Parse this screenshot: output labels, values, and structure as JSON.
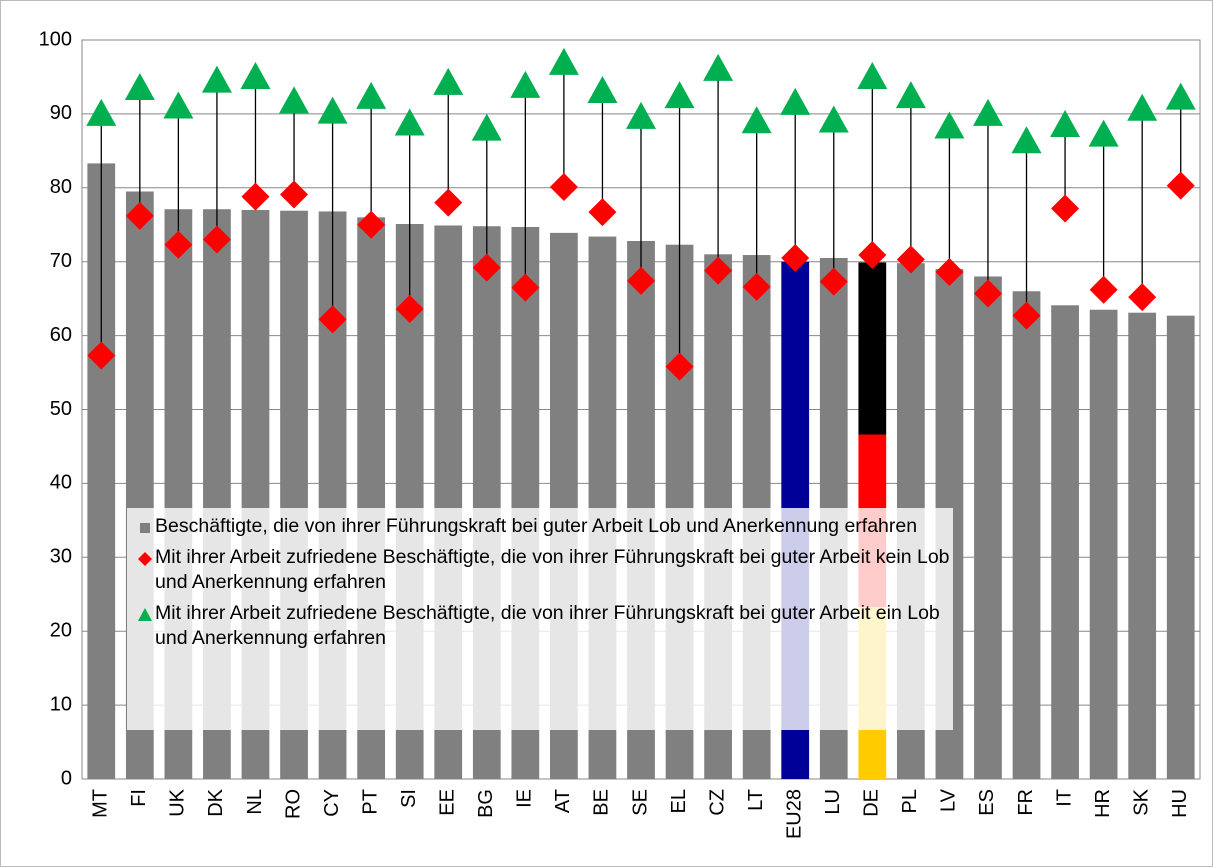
{
  "chart_data": {
    "type": "bar_dot",
    "categories": [
      "MT",
      "FI",
      "UK",
      "DK",
      "NL",
      "RO",
      "CY",
      "PT",
      "SI",
      "EE",
      "BG",
      "IE",
      "AT",
      "BE",
      "SE",
      "EL",
      "CZ",
      "LT",
      "EU28",
      "LU",
      "DE",
      "PL",
      "LV",
      "ES",
      "FR",
      "IT",
      "HR",
      "SK",
      "HU"
    ],
    "series": [
      {
        "name": "Beschäftigte, die von ihrer Führungskraft bei guter Arbeit Lob und Anerkennung erfahren",
        "kind": "bar",
        "color": "#808080",
        "colors": [
          "#808080",
          "#808080",
          "#808080",
          "#808080",
          "#808080",
          "#808080",
          "#808080",
          "#808080",
          "#808080",
          "#808080",
          "#808080",
          "#808080",
          "#808080",
          "#808080",
          "#808080",
          "#808080",
          "#808080",
          "#808080",
          "#000099",
          "#808080",
          [
            "#000000",
            "#ff0000",
            "#ffcc00"
          ],
          "#808080",
          "#808080",
          "#808080",
          "#808080",
          "#808080",
          "#808080",
          "#808080",
          "#808080"
        ],
        "values": [
          83.3,
          79.5,
          77.1,
          77.1,
          77.0,
          76.9,
          76.8,
          76.0,
          75.1,
          74.9,
          74.8,
          74.7,
          73.9,
          73.4,
          72.8,
          72.3,
          71.0,
          70.9,
          70.0,
          70.5,
          69.9,
          69.8,
          69.0,
          68.0,
          66.0,
          64.1,
          63.5,
          63.1,
          62.7
        ]
      },
      {
        "name": "Mit ihrer Arbeit zufriedene Beschäftigte, die von ihrer Führungskraft bei guter Arbeit kein Lob und Anerkennung erfahren",
        "kind": "diamond",
        "color": "#ff0000",
        "values": [
          57.3,
          76.2,
          72.3,
          73.0,
          78.8,
          79.1,
          62.2,
          75.0,
          63.6,
          78.0,
          69.2,
          66.5,
          80.1,
          76.7,
          67.4,
          55.8,
          68.8,
          66.6,
          70.5,
          67.3,
          70.9,
          70.3,
          68.6,
          65.7,
          62.7,
          77.2,
          66.2,
          65.2,
          80.3
        ]
      },
      {
        "name": "Mit ihrer Arbeit zufriedene Beschäftigte, die von ihrer Führungskraft bei guter Arbeit ein Lob und Anerkennung erfahren",
        "kind": "triangle",
        "color": "#00b050",
        "values": [
          90.0,
          93.5,
          91.0,
          94.5,
          95.0,
          91.7,
          90.3,
          92.3,
          88.7,
          94.2,
          88.0,
          93.8,
          96.9,
          93.1,
          89.6,
          92.4,
          96.1,
          89.0,
          91.5,
          89.1,
          95.0,
          92.4,
          88.3,
          90.0,
          86.3,
          88.5,
          87.2,
          90.7,
          92.2
        ]
      }
    ],
    "ylim": [
      0,
      100
    ],
    "yticks": [
      0,
      10,
      20,
      30,
      40,
      50,
      60,
      70,
      80,
      90,
      100
    ],
    "grid": true
  }
}
